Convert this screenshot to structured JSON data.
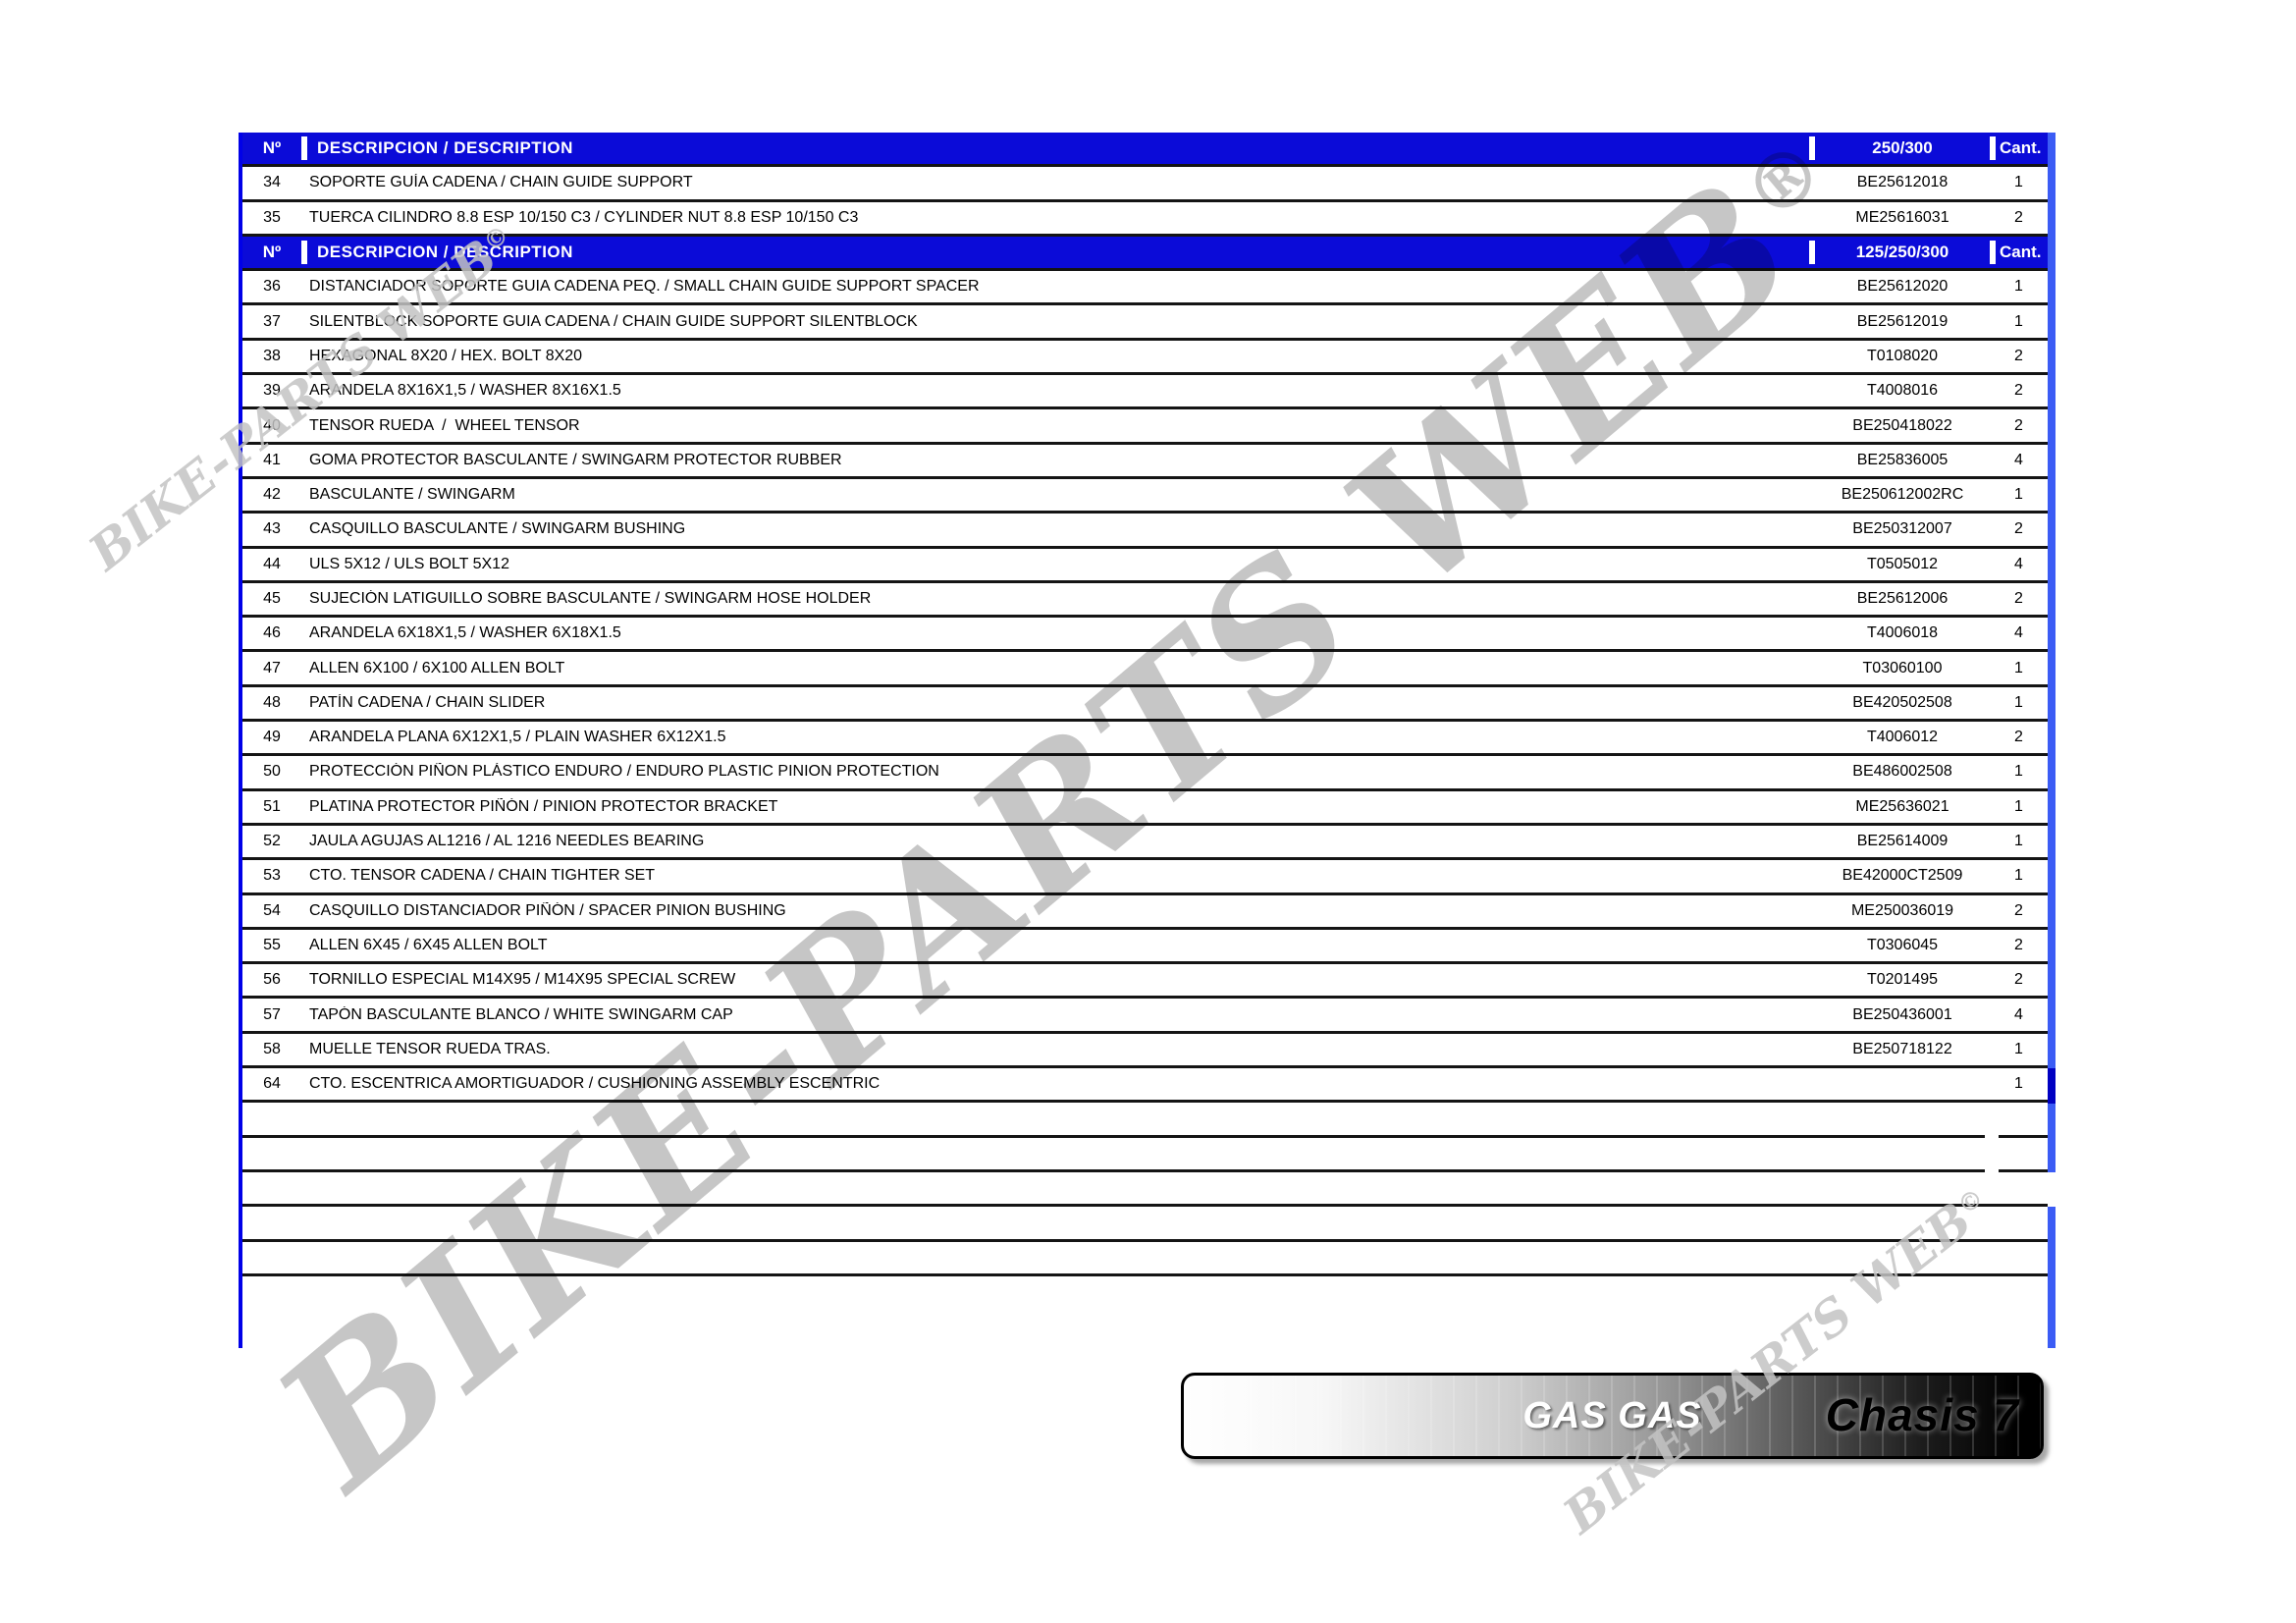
{
  "colors": {
    "header_bg": "#0b0bd8",
    "row_line": "#141414",
    "border_left_blue": "#0101e8",
    "border_right_blue": "#3b5cf5",
    "border_right_dark_blue": "#0000c2",
    "footer_gradient_start": "#ffffff",
    "footer_gradient_end": "#000000"
  },
  "watermarks": {
    "main_text": "BIKE-PARTS WEB",
    "main_symbol": "®",
    "corner_text": "BIKE-PARTS WEB",
    "corner_symbol": "©"
  },
  "footer": {
    "brand": "GAS GAS",
    "plate": "Chasis 7"
  },
  "table": {
    "sections": [
      {
        "header": {
          "no": "Nº",
          "description": "DESCRIPCION / DESCRIPTION",
          "ref": "250/300",
          "qty": "Cant."
        },
        "rows": [
          {
            "no": "34",
            "desc": "SOPORTE GUÍA CADENA / CHAIN GUIDE SUPPORT",
            "ref": "BE25612018",
            "qty": "1"
          },
          {
            "no": "35",
            "desc": "TUERCA CILINDRO 8.8 ESP 10/150 C3 / CYLINDER NUT 8.8 ESP 10/150 C3",
            "ref": "ME25616031",
            "qty": "2"
          }
        ]
      },
      {
        "header": {
          "no": "Nº",
          "description": "DESCRIPCION / DESCRIPTION",
          "ref": "125/250/300",
          "qty": "Cant."
        },
        "rows": [
          {
            "no": "36",
            "desc": "DISTANCIADOR SOPORTE GUIA CADENA PEQ. / SMALL CHAIN GUIDE SUPPORT SPACER",
            "ref": "BE25612020",
            "qty": "1"
          },
          {
            "no": "37",
            "desc": "SILENTBLOCK SOPORTE GUIA CADENA / CHAIN GUIDE SUPPORT SILENTBLOCK",
            "ref": "BE25612019",
            "qty": "1"
          },
          {
            "no": "38",
            "desc": "HEXAGONAL 8X20 / HEX. BOLT 8X20",
            "ref": "T0108020",
            "qty": "2"
          },
          {
            "no": "39",
            "desc": "ARANDELA 8X16X1,5 / WASHER 8X16X1.5",
            "ref": "T4008016",
            "qty": "2"
          },
          {
            "no": "40",
            "desc": "TENSOR RUEDA  /  WHEEL TENSOR",
            "ref": "BE250418022",
            "qty": "2"
          },
          {
            "no": "41",
            "desc": "GOMA PROTECTOR BASCULANTE / SWINGARM PROTECTOR RUBBER",
            "ref": "BE25836005",
            "qty": "4"
          },
          {
            "no": "42",
            "desc": "BASCULANTE / SWINGARM",
            "ref": "BE250612002RC",
            "qty": "1"
          },
          {
            "no": "43",
            "desc": "CASQUILLO BASCULANTE / SWINGARM BUSHING",
            "ref": "BE250312007",
            "qty": "2"
          },
          {
            "no": "44",
            "desc": "ULS 5X12 / ULS BOLT 5X12",
            "ref": "T0505012",
            "qty": "4"
          },
          {
            "no": "45",
            "desc": "SUJECIÓN LATIGUILLO SOBRE BASCULANTE / SWINGARM HOSE HOLDER",
            "ref": "BE25612006",
            "qty": "2"
          },
          {
            "no": "46",
            "desc": "ARANDELA 6X18X1,5 / WASHER 6X18X1.5",
            "ref": "T4006018",
            "qty": "4"
          },
          {
            "no": "47",
            "desc": "ALLEN 6X100 / 6X100 ALLEN BOLT",
            "ref": "T03060100",
            "qty": "1"
          },
          {
            "no": "48",
            "desc": "PATÍN CADENA / CHAIN SLIDER",
            "ref": "BE420502508",
            "qty": "1"
          },
          {
            "no": "49",
            "desc": "ARANDELA PLANA 6X12X1,5 / PLAIN WASHER 6X12X1.5",
            "ref": "T4006012",
            "qty": "2"
          },
          {
            "no": "50",
            "desc": "PROTECCIÓN PIÑON PLÁSTICO ENDURO / ENDURO PLASTIC PINION PROTECTION",
            "ref": "BE486002508",
            "qty": "1"
          },
          {
            "no": "51",
            "desc": "PLATINA PROTECTOR PIÑÓN / PINION PROTECTOR BRACKET",
            "ref": "ME25636021",
            "qty": "1"
          },
          {
            "no": "52",
            "desc": "JAULA AGUJAS AL1216 / AL 1216 NEEDLES BEARING",
            "ref": "BE25614009",
            "qty": "1"
          },
          {
            "no": "53",
            "desc": "CTO. TENSOR CADENA / CHAIN TIGHTER SET",
            "ref": "BE42000CT2509",
            "qty": "1"
          },
          {
            "no": "54",
            "desc": "CASQUILLO DISTANCIADOR PIÑÓN / SPACER PINION BUSHING",
            "ref": "ME250036019",
            "qty": "2"
          },
          {
            "no": "55",
            "desc": "ALLEN 6X45 / 6X45 ALLEN BOLT",
            "ref": "T0306045",
            "qty": "2"
          },
          {
            "no": "56",
            "desc": "TORNILLO ESPECIAL M14X95 / M14X95 SPECIAL SCREW",
            "ref": "T0201495",
            "qty": "2"
          },
          {
            "no": "57",
            "desc": "TAPÓN BASCULANTE BLANCO / WHITE SWINGARM CAP",
            "ref": "BE250436001",
            "qty": "4"
          },
          {
            "no": "58",
            "desc": "MUELLE TENSOR RUEDA TRAS.",
            "ref": "BE250718122",
            "qty": "1"
          },
          {
            "no": "64",
            "desc": "CTO. ESCENTRICA AMORTIGUADOR / CUSHIONING ASSEMBLY ESCENTRIC",
            "ref": "",
            "qty": "1"
          }
        ]
      }
    ]
  }
}
